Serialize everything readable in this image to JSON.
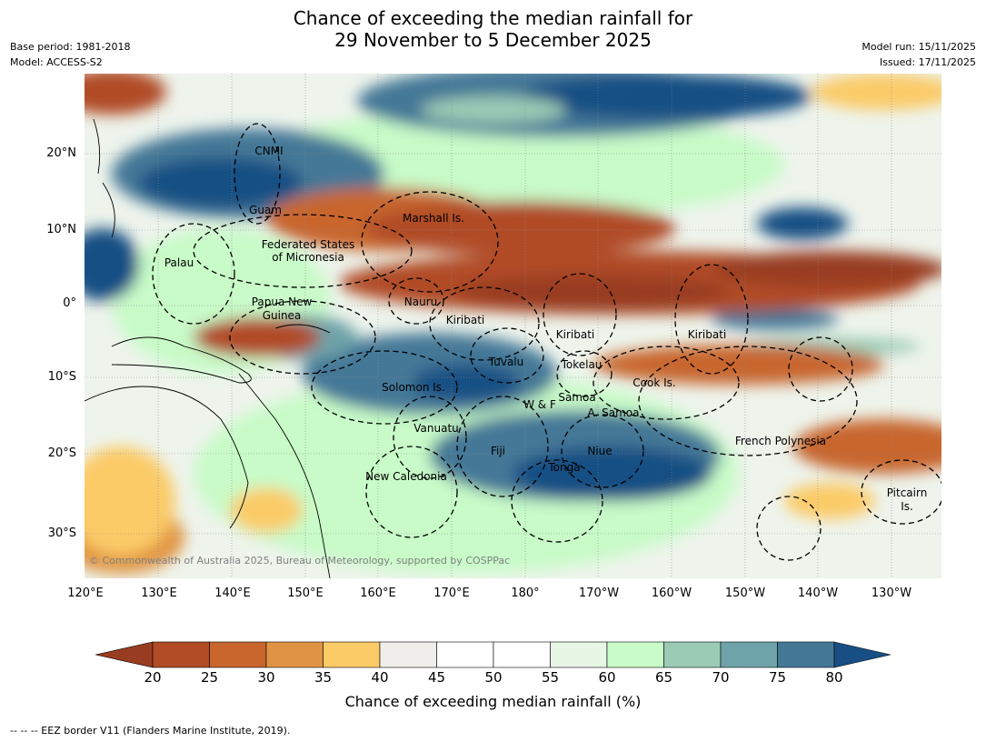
{
  "title_line1": "Chance of exceeding the median rainfall for",
  "title_line2": "29 November to 5 December 2025",
  "base_period": "Base period: 1981-2018",
  "model": "Model: ACCESS-S2",
  "model_run": "Model run: 15/11/2025",
  "issued": "Issued: 17/11/2025",
  "lat_labels": [
    "20°N",
    "10°N",
    "0°",
    "10°S",
    "20°S",
    "30°S"
  ],
  "lon_labels": [
    "120°E",
    "130°E",
    "140°E",
    "150°E",
    "160°E",
    "170°E",
    "180°",
    "170°W",
    "160°W",
    "150°W",
    "140°W",
    "130°W"
  ],
  "region_labels": {
    "cnmi": "CNMI",
    "guam": "Guam",
    "marshall": "Marshall Is.",
    "fsm1": "Federated States",
    "fsm2": "of Micronesia",
    "palau": "Palau",
    "png1": "Papua New",
    "png2": "Guinea",
    "nauru": "Nauru",
    "kiribati1": "Kiribati",
    "kiribati2": "Kiribati",
    "kiribati3": "Kiribati",
    "tuvalu": "Tuvalu",
    "tokelau": "Tokelau",
    "cook": "Cook Is.",
    "solomon": "Solomon Is.",
    "wf": "W & F",
    "samoa": "Samoa",
    "asamoa": "A. Samoa",
    "vanuatu": "Vanuatu",
    "fiji": "Fiji",
    "niue": "Niue",
    "tonga": "Tonga",
    "frenchpoly": "French Polynesia",
    "newcal": "New Caledonia",
    "pitcairn1": "Pitcairn",
    "pitcairn2": "Is."
  },
  "copyright": "© Commonwealth of Australia 2025, Bureau of Meteorology, supported by COSPPac",
  "colorbar": {
    "ticks": [
      "20",
      "25",
      "30",
      "35",
      "40",
      "45",
      "50",
      "55",
      "60",
      "65",
      "70",
      "75",
      "80"
    ],
    "colors": [
      "#993d22",
      "#b14c27",
      "#c8662e",
      "#e09443",
      "#fbcb68",
      "#efeeea",
      "#ffffff",
      "#ffffff",
      "#e8f6e6",
      "#c8fbc8",
      "#9bcbb5",
      "#6ea3a9",
      "#447897",
      "#174f84"
    ],
    "title": "Chance of exceeding median rainfall (%)"
  },
  "footer": "--  --  -- EEZ border V11 (Flanders Marine Institute, 2019)."
}
